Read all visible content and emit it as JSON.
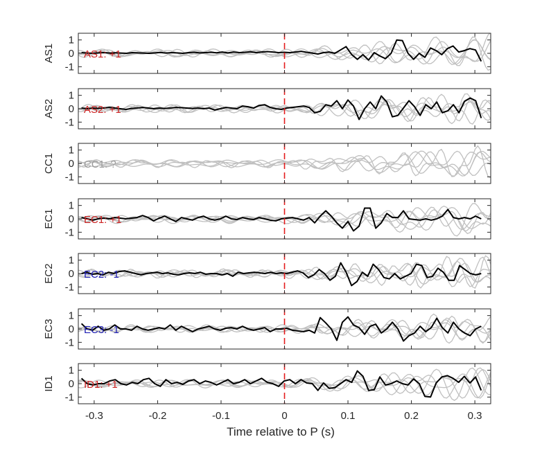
{
  "chart_data": {
    "type": "line",
    "xlabel": "Time relative to P (s)",
    "xlim": [
      -0.325,
      0.325
    ],
    "ylim": [
      -1.5,
      1.5
    ],
    "x_ticks": [
      -0.3,
      -0.2,
      -0.1,
      0,
      0.1,
      0.2,
      0.3
    ],
    "x_tick_labels": [
      "-0.3",
      "-0.2",
      "-0.1",
      "0",
      "0.1",
      "0.2",
      "0.3"
    ],
    "y_ticks": [
      -1,
      0,
      1
    ],
    "y_tick_labels": [
      "-1",
      "0",
      "1"
    ],
    "marker_line": {
      "x": 0,
      "color": "#e41a1c"
    },
    "colors": {
      "main": "#000000",
      "background": "#c0c0c0",
      "positive": "#cc2222",
      "negative": "#1f1fb4",
      "unknown": "#999999"
    },
    "panels": [
      {
        "name": "AS1",
        "annotation": "AS1: +1",
        "polarity": "positive",
        "values": [
          0.05,
          0.02,
          0.0,
          0.03,
          0.05,
          0.02,
          0.04,
          0.02,
          0.0,
          0.05,
          0.03,
          0.02,
          0.0,
          0.03,
          0.06,
          0.02,
          0.05,
          0.03,
          0.0,
          0.05,
          0.08,
          0.03,
          0.05,
          0.08,
          0.04,
          0.1,
          0.03,
          0.1,
          0.05,
          0.08,
          0.12,
          0.05,
          0.1,
          0.13,
          0.1,
          0.05,
          0.08,
          0.05,
          0.1,
          0.15,
          0.08,
          0.02,
          -0.05,
          0.05,
          0.1,
          0.0,
          0.25,
          0.5,
          -0.1,
          -0.45,
          -0.1,
          -0.5,
          0.05,
          -0.2,
          -0.4,
          0.0,
          1.0,
          0.95,
          0.0,
          -0.45,
          0.0,
          -0.3,
          0.4,
          0.2,
          -0.1,
          0.35,
          0.55,
          0.1,
          0.2,
          0.35,
          0.25,
          -0.6
        ]
      },
      {
        "name": "AS2",
        "annotation": "AS2: +1",
        "polarity": "positive",
        "values": [
          0.05,
          0.0,
          0.05,
          0.02,
          0.05,
          0.1,
          0.05,
          0.0,
          -0.05,
          0.02,
          0.05,
          0.1,
          0.05,
          0.0,
          0.05,
          0.02,
          0.05,
          0.1,
          0.08,
          0.05,
          0.02,
          0.05,
          0.0,
          0.05,
          -0.1,
          0.0,
          0.1,
          0.05,
          0.0,
          0.2,
          0.15,
          0.05,
          0.25,
          0.3,
          0.1,
          0.0,
          -0.05,
          0.05,
          0.1,
          0.15,
          0.2,
          0.1,
          -0.3,
          -0.2,
          0.3,
          0.2,
          0.6,
          0.0,
          0.65,
          0.2,
          -0.8,
          0.0,
          0.5,
          0.0,
          0.95,
          0.5,
          -0.6,
          -0.5,
          0.05,
          0.6,
          0.15,
          -0.5,
          0.3,
          0.0,
          0.5,
          -0.3,
          -0.15,
          0.3,
          -0.3,
          0.55,
          0.8,
          0.6,
          -0.7
        ]
      },
      {
        "name": "CC1",
        "annotation": "CC1: ?",
        "polarity": "unknown",
        "values": []
      },
      {
        "name": "EC1",
        "annotation": "EC1: +1",
        "polarity": "positive",
        "values": [
          0.1,
          0.0,
          -0.1,
          0.0,
          0.05,
          0.0,
          0.1,
          0.05,
          0.0,
          0.05,
          0.1,
          0.25,
          0.1,
          -0.15,
          0.05,
          0.2,
          0.0,
          -0.2,
          0.1,
          0.0,
          -0.1,
          0.1,
          0.2,
          0.0,
          -0.1,
          0.0,
          0.2,
          0.0,
          -0.05,
          0.1,
          0.0,
          -0.05,
          0.1,
          0.0,
          -0.1,
          -0.15,
          0.0,
          0.05,
          0.1,
          0.0,
          -0.1,
          0.1,
          -0.3,
          0.2,
          0.6,
          0.2,
          -0.3,
          -0.7,
          -0.2,
          -0.9,
          -0.55,
          0.8,
          0.8,
          -0.7,
          -0.3,
          0.4,
          0.1,
          0.1,
          0.6,
          0.0,
          -0.05,
          -0.1,
          0.0,
          -0.1,
          0.0,
          0.2,
          0.7,
          0.1,
          0.0,
          0.1,
          0.0,
          0.2,
          0.0
        ]
      },
      {
        "name": "EC2",
        "annotation": "EC2: -1",
        "polarity": "negative",
        "values": [
          0.0,
          0.1,
          -0.05,
          0.0,
          -0.1,
          0.1,
          0.0,
          0.15,
          0.2,
          0.1,
          0.0,
          -0.1,
          0.0,
          0.05,
          0.1,
          0.0,
          0.05,
          -0.05,
          -0.1,
          0.0,
          0.05,
          0.0,
          0.1,
          -0.05,
          0.0,
          0.0,
          -0.1,
          0.0,
          -0.2,
          0.1,
          0.0,
          0.05,
          0.1,
          0.05,
          0.0,
          0.1,
          0.0,
          0.05,
          0.0,
          0.1,
          0.2,
          0.05,
          -0.3,
          -0.1,
          0.3,
          0.0,
          -0.5,
          -0.2,
          0.8,
          0.1,
          -0.9,
          -0.6,
          0.1,
          -0.2,
          0.7,
          0.3,
          -0.3,
          -0.4,
          0.0,
          -0.4,
          -0.2,
          0.0,
          0.7,
          0.6,
          -0.3,
          -0.2,
          0.4,
          0.1,
          -0.5,
          -0.5,
          0.6,
          0.3,
          0.0,
          -0.1,
          0.0
        ]
      },
      {
        "name": "EC3",
        "annotation": "EC3: -1",
        "polarity": "negative",
        "values": [
          0.4,
          0.0,
          -0.1,
          0.2,
          -0.1,
          0.0,
          0.3,
          0.0,
          0.0,
          -0.1,
          0.2,
          0.0,
          -0.1,
          0.0,
          0.1,
          0.0,
          0.3,
          -0.1,
          0.2,
          0.0,
          -0.2,
          0.0,
          0.1,
          0.2,
          0.0,
          -0.1,
          0.05,
          0.1,
          0.0,
          0.2,
          0.0,
          -0.1,
          0.0,
          0.1,
          -0.2,
          0.0,
          0.0,
          0.05,
          -0.1,
          -0.15,
          -0.2,
          -0.1,
          -0.3,
          0.85,
          0.45,
          0.0,
          -0.85,
          0.5,
          0.9,
          0.3,
          0.1,
          -0.4,
          0.2,
          0.35,
          -0.3,
          0.0,
          0.5,
          0.0,
          -0.9,
          -0.5,
          -0.3,
          0.2,
          -0.2,
          0.1,
          0.8,
          0.1,
          -0.3,
          0.5,
          0.0,
          -0.3,
          -0.5,
          0.0,
          0.2
        ]
      },
      {
        "name": "ID1",
        "annotation": "ID1: +1",
        "polarity": "positive",
        "values": [
          0.4,
          0.0,
          -0.1,
          0.0,
          0.0,
          0.2,
          0.3,
          0.0,
          -0.1,
          0.1,
          0.0,
          0.3,
          0.4,
          0.0,
          -0.2,
          0.3,
          0.0,
          0.1,
          -0.05,
          0.2,
          0.3,
          0.0,
          0.2,
          0.1,
          -0.1,
          0.1,
          0.3,
          0.0,
          0.1,
          0.3,
          0.0,
          0.2,
          0.4,
          0.1,
          0.0,
          -0.2,
          0.2,
          0.3,
          0.0,
          0.3,
          0.05,
          0.0,
          -0.5,
          0.05,
          -0.35,
          -0.3,
          0.0,
          0.3,
          0.1,
          0.95,
          0.55,
          -0.5,
          -0.45,
          0.5,
          -0.1,
          0.0,
          0.2,
          0.0,
          -0.1,
          0.35,
          0.0,
          -0.95,
          -1.0,
          0.05,
          0.5,
          0.6,
          0.4,
          0.1,
          0.55,
          0.05,
          0.5,
          -0.5
        ]
      }
    ]
  }
}
